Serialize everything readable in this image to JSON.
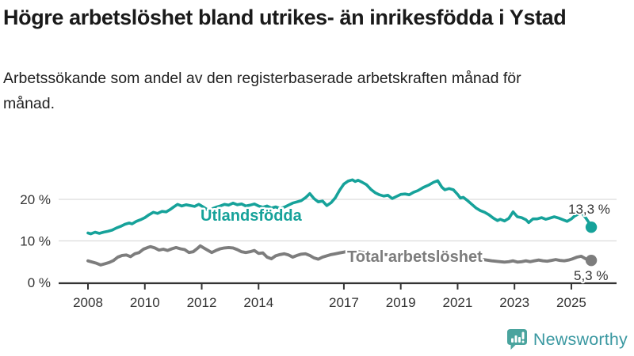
{
  "page": {
    "title": "Högre arbetslöshet bland utrikes- än inrikesfödda i Ystad",
    "subtitle": "Arbetssökande som andel av den registerbaserade arbetskraften månad för månad."
  },
  "chart_data": {
    "type": "line",
    "title": "Högre arbetslöshet bland utrikes- än inrikesfödda i Ystad",
    "subtitle": "Arbetssökande som andel av den registerbaserade arbetskraften månad för månad.",
    "x_axis": {
      "tick_years": [
        2008,
        2010,
        2012,
        2014,
        2017,
        2019,
        2021,
        2023,
        2025
      ],
      "range": [
        2008,
        2025.7
      ]
    },
    "y_axis": {
      "tick_labels": [
        "0 %",
        "10 %",
        "20 %"
      ],
      "tick_values": [
        0,
        10,
        20
      ],
      "range": [
        0,
        26
      ],
      "grid": true
    },
    "colors": {
      "grid": "#dcdcdc",
      "axis": "#333333",
      "value_label": "#333333"
    },
    "legend_position": "labels-on-lines",
    "series": [
      {
        "name": "Utlandsfödda",
        "color": "#16a29a",
        "end_label": "13,3 %",
        "end_value": 13.3,
        "points": [
          [
            2008.0,
            11.9
          ],
          [
            2008.1,
            11.7
          ],
          [
            2008.25,
            12.1
          ],
          [
            2008.4,
            11.8
          ],
          [
            2008.55,
            12.1
          ],
          [
            2008.7,
            12.3
          ],
          [
            2008.85,
            12.6
          ],
          [
            2009.0,
            13.1
          ],
          [
            2009.15,
            13.5
          ],
          [
            2009.3,
            14.0
          ],
          [
            2009.45,
            14.3
          ],
          [
            2009.55,
            14.1
          ],
          [
            2009.7,
            14.7
          ],
          [
            2009.85,
            15.1
          ],
          [
            2010.0,
            15.6
          ],
          [
            2010.15,
            16.3
          ],
          [
            2010.3,
            16.9
          ],
          [
            2010.45,
            16.6
          ],
          [
            2010.6,
            17.1
          ],
          [
            2010.75,
            17.0
          ],
          [
            2010.9,
            17.6
          ],
          [
            2011.0,
            18.1
          ],
          [
            2011.15,
            18.8
          ],
          [
            2011.3,
            18.4
          ],
          [
            2011.45,
            18.7
          ],
          [
            2011.6,
            18.5
          ],
          [
            2011.75,
            18.3
          ],
          [
            2011.9,
            18.8
          ],
          [
            2012.05,
            18.2
          ],
          [
            2012.2,
            17.5
          ],
          [
            2012.35,
            17.7
          ],
          [
            2012.5,
            18.1
          ],
          [
            2012.65,
            18.4
          ],
          [
            2012.8,
            18.8
          ],
          [
            2012.95,
            18.6
          ],
          [
            2013.1,
            19.1
          ],
          [
            2013.25,
            18.7
          ],
          [
            2013.4,
            18.9
          ],
          [
            2013.55,
            18.4
          ],
          [
            2013.7,
            18.6
          ],
          [
            2013.85,
            18.9
          ],
          [
            2014.0,
            18.4
          ],
          [
            2014.15,
            18.1
          ],
          [
            2014.3,
            18.4
          ],
          [
            2014.45,
            17.9
          ],
          [
            2014.6,
            18.2
          ],
          [
            2014.75,
            17.8
          ],
          [
            2014.9,
            18.1
          ],
          [
            2015.05,
            18.6
          ],
          [
            2015.2,
            19.1
          ],
          [
            2015.35,
            19.4
          ],
          [
            2015.5,
            19.7
          ],
          [
            2015.65,
            20.4
          ],
          [
            2015.8,
            21.4
          ],
          [
            2015.95,
            20.2
          ],
          [
            2016.1,
            19.4
          ],
          [
            2016.25,
            19.6
          ],
          [
            2016.4,
            18.5
          ],
          [
            2016.55,
            19.2
          ],
          [
            2016.7,
            20.4
          ],
          [
            2016.85,
            22.2
          ],
          [
            2017.0,
            23.7
          ],
          [
            2017.15,
            24.4
          ],
          [
            2017.3,
            24.7
          ],
          [
            2017.4,
            24.3
          ],
          [
            2017.5,
            24.6
          ],
          [
            2017.65,
            24.1
          ],
          [
            2017.8,
            23.5
          ],
          [
            2017.95,
            22.4
          ],
          [
            2018.1,
            21.6
          ],
          [
            2018.25,
            21.1
          ],
          [
            2018.4,
            20.8
          ],
          [
            2018.55,
            21.0
          ],
          [
            2018.7,
            20.2
          ],
          [
            2018.85,
            20.7
          ],
          [
            2019.0,
            21.2
          ],
          [
            2019.15,
            21.3
          ],
          [
            2019.3,
            21.1
          ],
          [
            2019.45,
            21.7
          ],
          [
            2019.6,
            22.1
          ],
          [
            2019.8,
            22.9
          ],
          [
            2020.0,
            23.5
          ],
          [
            2020.15,
            24.1
          ],
          [
            2020.3,
            24.5
          ],
          [
            2020.45,
            22.9
          ],
          [
            2020.55,
            22.3
          ],
          [
            2020.7,
            22.6
          ],
          [
            2020.85,
            22.3
          ],
          [
            2021.0,
            21.2
          ],
          [
            2021.1,
            20.3
          ],
          [
            2021.2,
            20.5
          ],
          [
            2021.35,
            19.7
          ],
          [
            2021.5,
            18.8
          ],
          [
            2021.65,
            17.9
          ],
          [
            2021.8,
            17.3
          ],
          [
            2021.95,
            16.9
          ],
          [
            2022.1,
            16.3
          ],
          [
            2022.25,
            15.5
          ],
          [
            2022.4,
            14.9
          ],
          [
            2022.5,
            15.2
          ],
          [
            2022.65,
            14.8
          ],
          [
            2022.8,
            15.4
          ],
          [
            2022.95,
            17.0
          ],
          [
            2023.1,
            15.8
          ],
          [
            2023.25,
            15.6
          ],
          [
            2023.4,
            15.1
          ],
          [
            2023.5,
            14.4
          ],
          [
            2023.65,
            15.3
          ],
          [
            2023.8,
            15.3
          ],
          [
            2023.95,
            15.6
          ],
          [
            2024.1,
            15.2
          ],
          [
            2024.25,
            15.5
          ],
          [
            2024.4,
            15.8
          ],
          [
            2024.55,
            15.5
          ],
          [
            2024.7,
            15.1
          ],
          [
            2024.85,
            14.7
          ],
          [
            2025.0,
            15.3
          ],
          [
            2025.1,
            15.9
          ],
          [
            2025.2,
            16.3
          ],
          [
            2025.35,
            16.9
          ],
          [
            2025.5,
            15.6
          ],
          [
            2025.6,
            14.6
          ],
          [
            2025.7,
            13.3
          ]
        ]
      },
      {
        "name": "Total arbetslöshet",
        "color": "#7d7d7d",
        "end_label": "5,3 %",
        "end_value": 5.3,
        "points": [
          [
            2008.0,
            5.2
          ],
          [
            2008.15,
            4.9
          ],
          [
            2008.3,
            4.6
          ],
          [
            2008.45,
            4.2
          ],
          [
            2008.6,
            4.5
          ],
          [
            2008.75,
            4.8
          ],
          [
            2008.9,
            5.3
          ],
          [
            2009.05,
            6.1
          ],
          [
            2009.2,
            6.5
          ],
          [
            2009.35,
            6.6
          ],
          [
            2009.5,
            6.2
          ],
          [
            2009.65,
            6.9
          ],
          [
            2009.8,
            7.2
          ],
          [
            2009.95,
            8.0
          ],
          [
            2010.1,
            8.4
          ],
          [
            2010.2,
            8.6
          ],
          [
            2010.35,
            8.3
          ],
          [
            2010.5,
            7.8
          ],
          [
            2010.65,
            8.0
          ],
          [
            2010.8,
            7.7
          ],
          [
            2010.95,
            8.1
          ],
          [
            2011.1,
            8.4
          ],
          [
            2011.25,
            8.1
          ],
          [
            2011.4,
            7.9
          ],
          [
            2011.55,
            7.2
          ],
          [
            2011.7,
            7.4
          ],
          [
            2011.85,
            8.2
          ],
          [
            2011.95,
            8.8
          ],
          [
            2012.05,
            8.4
          ],
          [
            2012.2,
            7.8
          ],
          [
            2012.35,
            7.2
          ],
          [
            2012.5,
            7.7
          ],
          [
            2012.65,
            8.1
          ],
          [
            2012.8,
            8.3
          ],
          [
            2012.95,
            8.4
          ],
          [
            2013.1,
            8.3
          ],
          [
            2013.25,
            7.9
          ],
          [
            2013.4,
            7.4
          ],
          [
            2013.55,
            7.2
          ],
          [
            2013.7,
            7.4
          ],
          [
            2013.85,
            7.7
          ],
          [
            2014.0,
            7.0
          ],
          [
            2014.15,
            7.1
          ],
          [
            2014.3,
            6.1
          ],
          [
            2014.45,
            5.7
          ],
          [
            2014.6,
            6.4
          ],
          [
            2014.75,
            6.7
          ],
          [
            2014.9,
            6.9
          ],
          [
            2015.05,
            6.6
          ],
          [
            2015.2,
            6.1
          ],
          [
            2015.35,
            6.5
          ],
          [
            2015.5,
            6.8
          ],
          [
            2015.65,
            6.9
          ],
          [
            2015.8,
            6.5
          ],
          [
            2015.95,
            5.9
          ],
          [
            2016.1,
            5.6
          ],
          [
            2016.25,
            6.1
          ],
          [
            2016.4,
            6.4
          ],
          [
            2016.55,
            6.7
          ],
          [
            2016.7,
            6.9
          ],
          [
            2016.85,
            7.1
          ],
          [
            2017.0,
            7.3
          ],
          [
            2017.2,
            7.6
          ],
          [
            2017.4,
            7.5
          ],
          [
            2017.6,
            7.3
          ],
          [
            2017.8,
            7.1
          ],
          [
            2018.0,
            7.0
          ],
          [
            2018.3,
            6.8
          ],
          [
            2018.6,
            6.6
          ],
          [
            2018.9,
            6.4
          ],
          [
            2019.2,
            6.3
          ],
          [
            2019.5,
            6.4
          ],
          [
            2019.8,
            6.6
          ],
          [
            2020.0,
            6.8
          ],
          [
            2020.3,
            7.1
          ],
          [
            2020.5,
            7.0
          ],
          [
            2020.8,
            6.7
          ],
          [
            2021.0,
            6.4
          ],
          [
            2021.3,
            6.1
          ],
          [
            2021.6,
            5.8
          ],
          [
            2021.9,
            5.5
          ],
          [
            2022.2,
            5.2
          ],
          [
            2022.5,
            5.0
          ],
          [
            2022.65,
            4.9
          ],
          [
            2022.8,
            5.0
          ],
          [
            2022.95,
            5.2
          ],
          [
            2023.1,
            4.9
          ],
          [
            2023.25,
            5.0
          ],
          [
            2023.4,
            5.2
          ],
          [
            2023.55,
            5.0
          ],
          [
            2023.7,
            5.2
          ],
          [
            2023.85,
            5.4
          ],
          [
            2024.0,
            5.2
          ],
          [
            2024.15,
            5.1
          ],
          [
            2024.3,
            5.3
          ],
          [
            2024.45,
            5.5
          ],
          [
            2024.6,
            5.3
          ],
          [
            2024.75,
            5.2
          ],
          [
            2024.9,
            5.4
          ],
          [
            2025.05,
            5.7
          ],
          [
            2025.2,
            6.1
          ],
          [
            2025.35,
            6.3
          ],
          [
            2025.5,
            5.7
          ],
          [
            2025.6,
            5.4
          ],
          [
            2025.7,
            5.3
          ]
        ]
      }
    ]
  },
  "branding": {
    "logo_text": "Newsworthy",
    "logo_icon": "bar-chart-speech-bubble-icon",
    "logo_text_color": "#3a98a1",
    "logo_icon_color": "#4aa49e"
  }
}
